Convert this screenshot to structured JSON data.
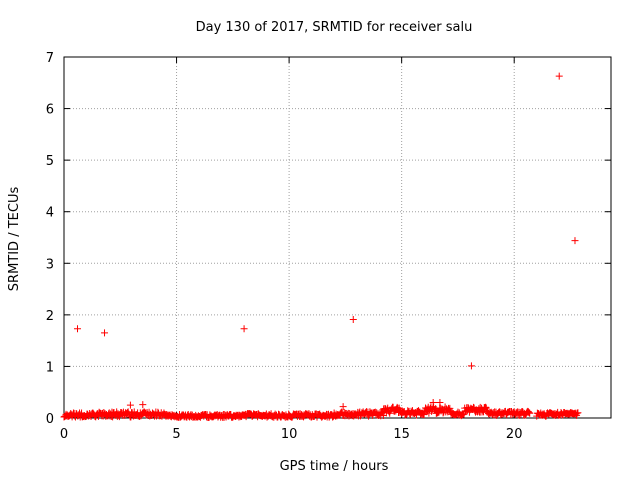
{
  "chart_data": {
    "type": "scatter",
    "title": "Day 130 of 2017, SRMTID for receiver salu",
    "xlabel": "GPS time / hours",
    "ylabel": "SRMTID / TECUs",
    "xlim": [
      0,
      24.3
    ],
    "ylim": [
      0,
      7
    ],
    "x_ticks": [
      0,
      5,
      10,
      15,
      20
    ],
    "y_ticks": [
      0,
      1,
      2,
      3,
      4,
      5,
      6,
      7
    ],
    "grid": true,
    "marker": "+",
    "color": "#ff0000",
    "series": [
      {
        "name": "SRMTID",
        "outliers": [
          {
            "x": 0.6,
            "y": 1.73
          },
          {
            "x": 1.8,
            "y": 1.65
          },
          {
            "x": 2.95,
            "y": 0.25
          },
          {
            "x": 3.5,
            "y": 0.26
          },
          {
            "x": 8.0,
            "y": 1.73
          },
          {
            "x": 12.85,
            "y": 1.91
          },
          {
            "x": 12.4,
            "y": 0.22
          },
          {
            "x": 16.4,
            "y": 0.3
          },
          {
            "x": 16.7,
            "y": 0.3
          },
          {
            "x": 18.1,
            "y": 1.01
          },
          {
            "x": 22.0,
            "y": 6.63
          },
          {
            "x": 22.7,
            "y": 3.44
          }
        ],
        "baseline_segments": [
          {
            "x_start": 0.0,
            "x_end": 1.5,
            "y_mean": 0.06,
            "y_spread": 0.08
          },
          {
            "x_start": 1.5,
            "x_end": 4.5,
            "y_mean": 0.07,
            "y_spread": 0.1
          },
          {
            "x_start": 4.5,
            "x_end": 8.0,
            "y_mean": 0.04,
            "y_spread": 0.06
          },
          {
            "x_start": 8.0,
            "x_end": 12.0,
            "y_mean": 0.05,
            "y_spread": 0.07
          },
          {
            "x_start": 12.0,
            "x_end": 14.2,
            "y_mean": 0.08,
            "y_spread": 0.09
          },
          {
            "x_start": 14.2,
            "x_end": 15.0,
            "y_mean": 0.15,
            "y_spread": 0.12
          },
          {
            "x_start": 15.0,
            "x_end": 16.0,
            "y_mean": 0.1,
            "y_spread": 0.09
          },
          {
            "x_start": 16.0,
            "x_end": 17.2,
            "y_mean": 0.15,
            "y_spread": 0.14
          },
          {
            "x_start": 17.2,
            "x_end": 17.8,
            "y_mean": 0.08,
            "y_spread": 0.07
          },
          {
            "x_start": 17.8,
            "x_end": 18.8,
            "y_mean": 0.16,
            "y_spread": 0.1
          },
          {
            "x_start": 18.8,
            "x_end": 20.7,
            "y_mean": 0.09,
            "y_spread": 0.08
          },
          {
            "x_start": 21.0,
            "x_end": 22.85,
            "y_mean": 0.07,
            "y_spread": 0.08
          }
        ]
      }
    ]
  }
}
